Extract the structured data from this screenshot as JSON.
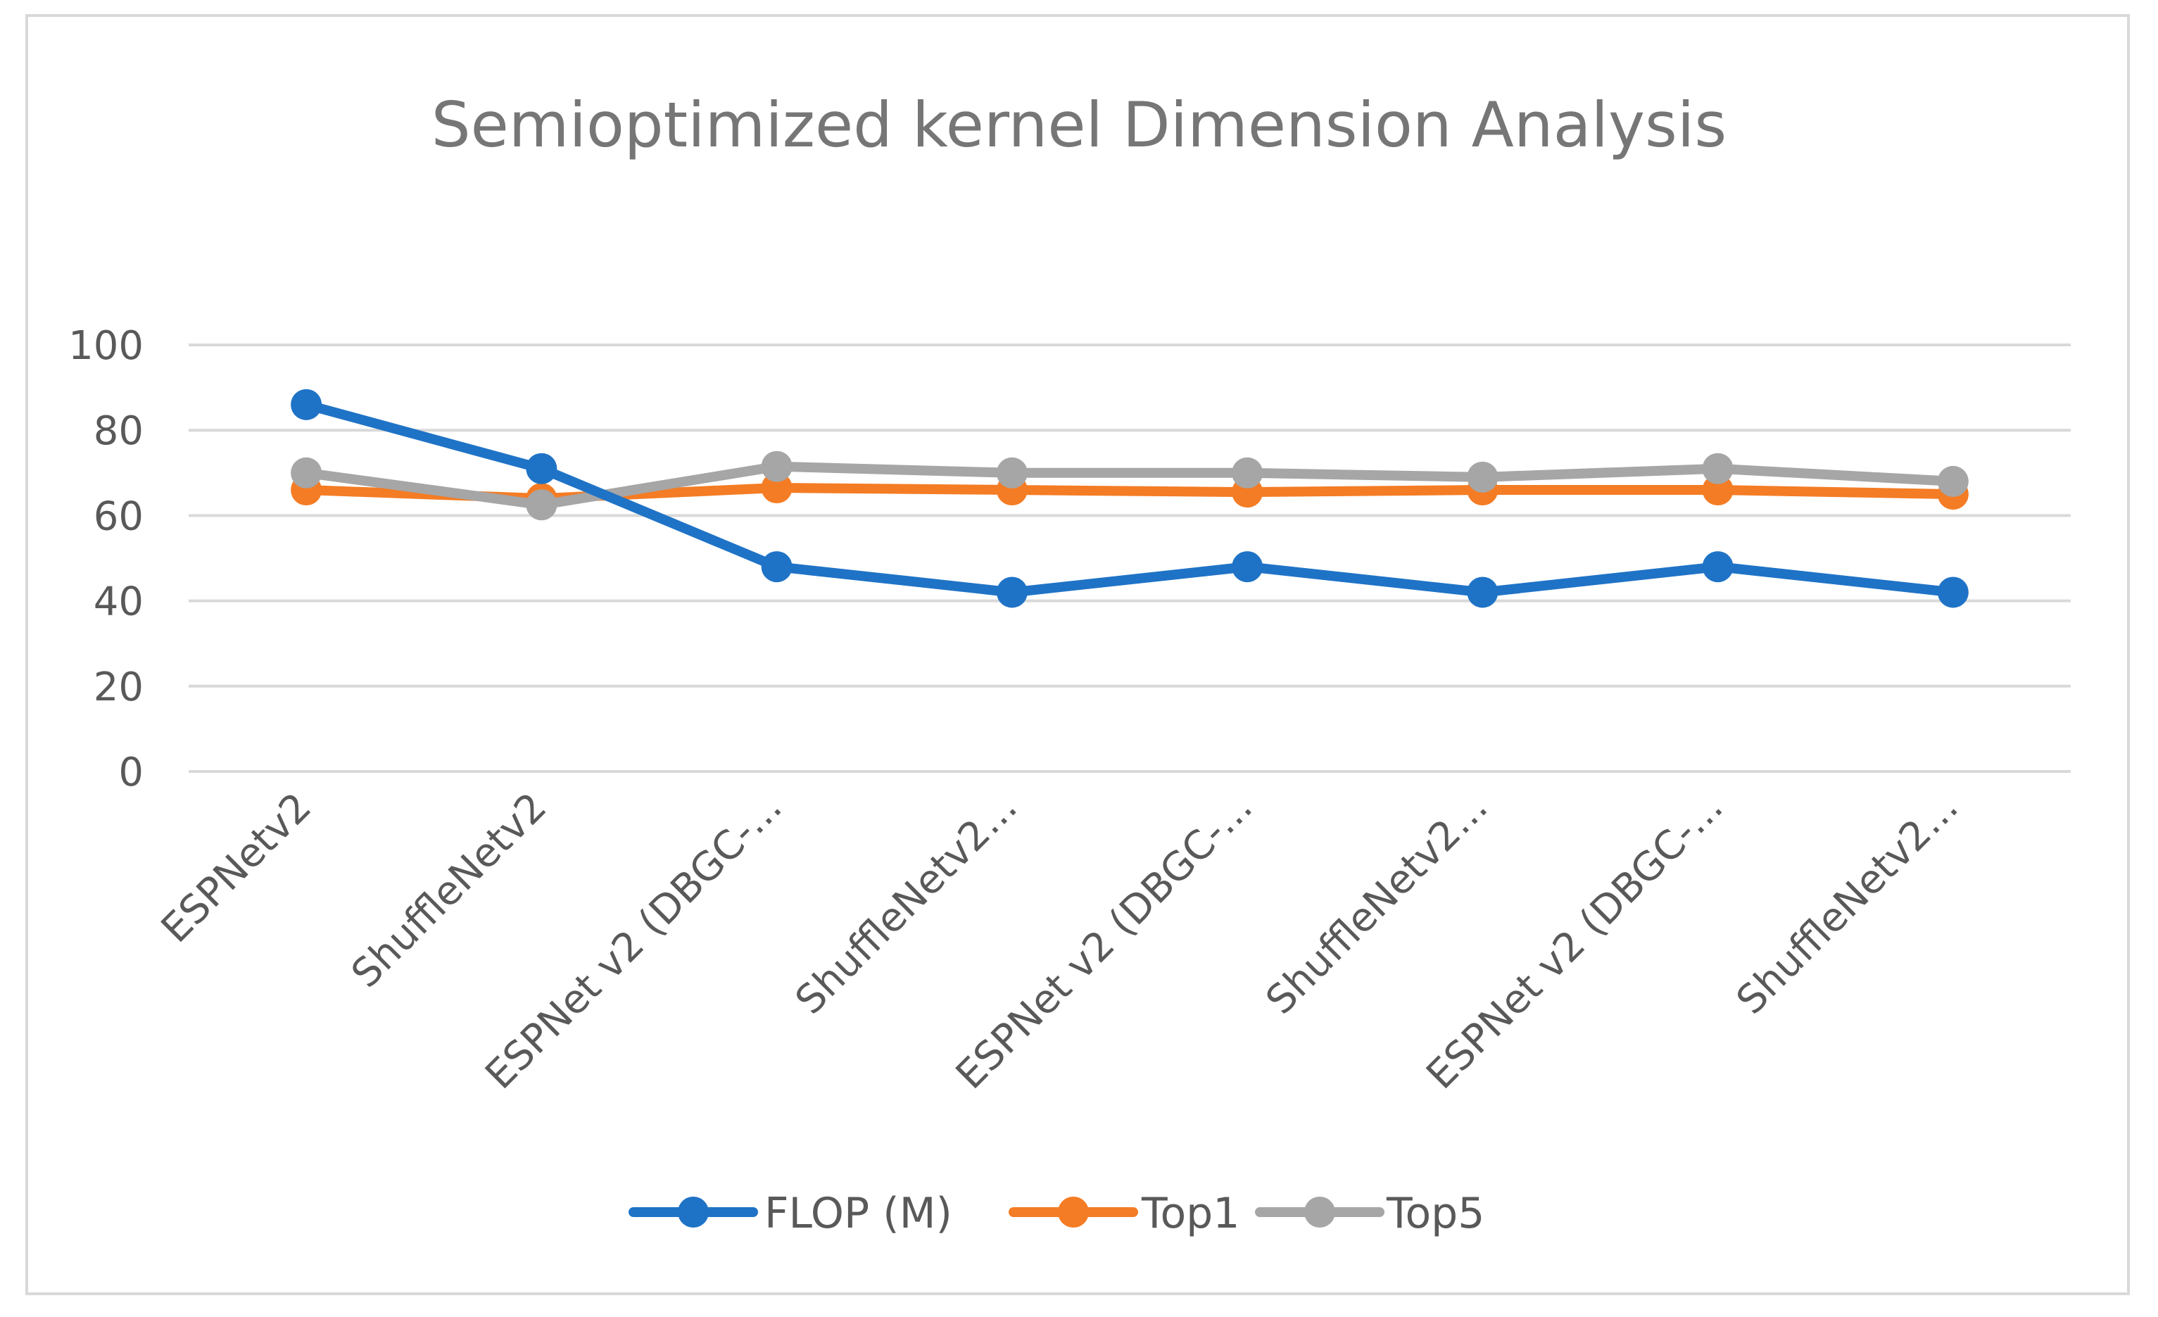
{
  "chart_data": {
    "type": "line",
    "title": "Semioptimized kernel Dimension Analysis",
    "xlabel": "",
    "ylabel": "",
    "ylim": [
      0,
      100
    ],
    "yticks": [
      0,
      20,
      40,
      60,
      80,
      100
    ],
    "grid": true,
    "legend_position": "bottom",
    "categories": [
      "ESPNetv2",
      "ShuffleNetv2",
      "ESPNet v2 (DBGC-...",
      "ShuffleNetv2...",
      "ESPNet v2 (DBGC-...",
      "ShuffleNetv2...",
      "ESPNet v2 (DBGC-...",
      "ShuffleNetv2..."
    ],
    "series": [
      {
        "name": "FLOP (M)",
        "color": "#1f73c6",
        "values": [
          86,
          71,
          48,
          42,
          48,
          42,
          48,
          42
        ]
      },
      {
        "name": "Top1",
        "color": "#f47c24",
        "values": [
          66,
          64,
          66.5,
          66,
          65.5,
          66,
          66,
          65
        ]
      },
      {
        "name": "Top5",
        "color": "#a6a6a6",
        "values": [
          70,
          62.5,
          71.5,
          70,
          70,
          69,
          71,
          68
        ]
      }
    ]
  }
}
